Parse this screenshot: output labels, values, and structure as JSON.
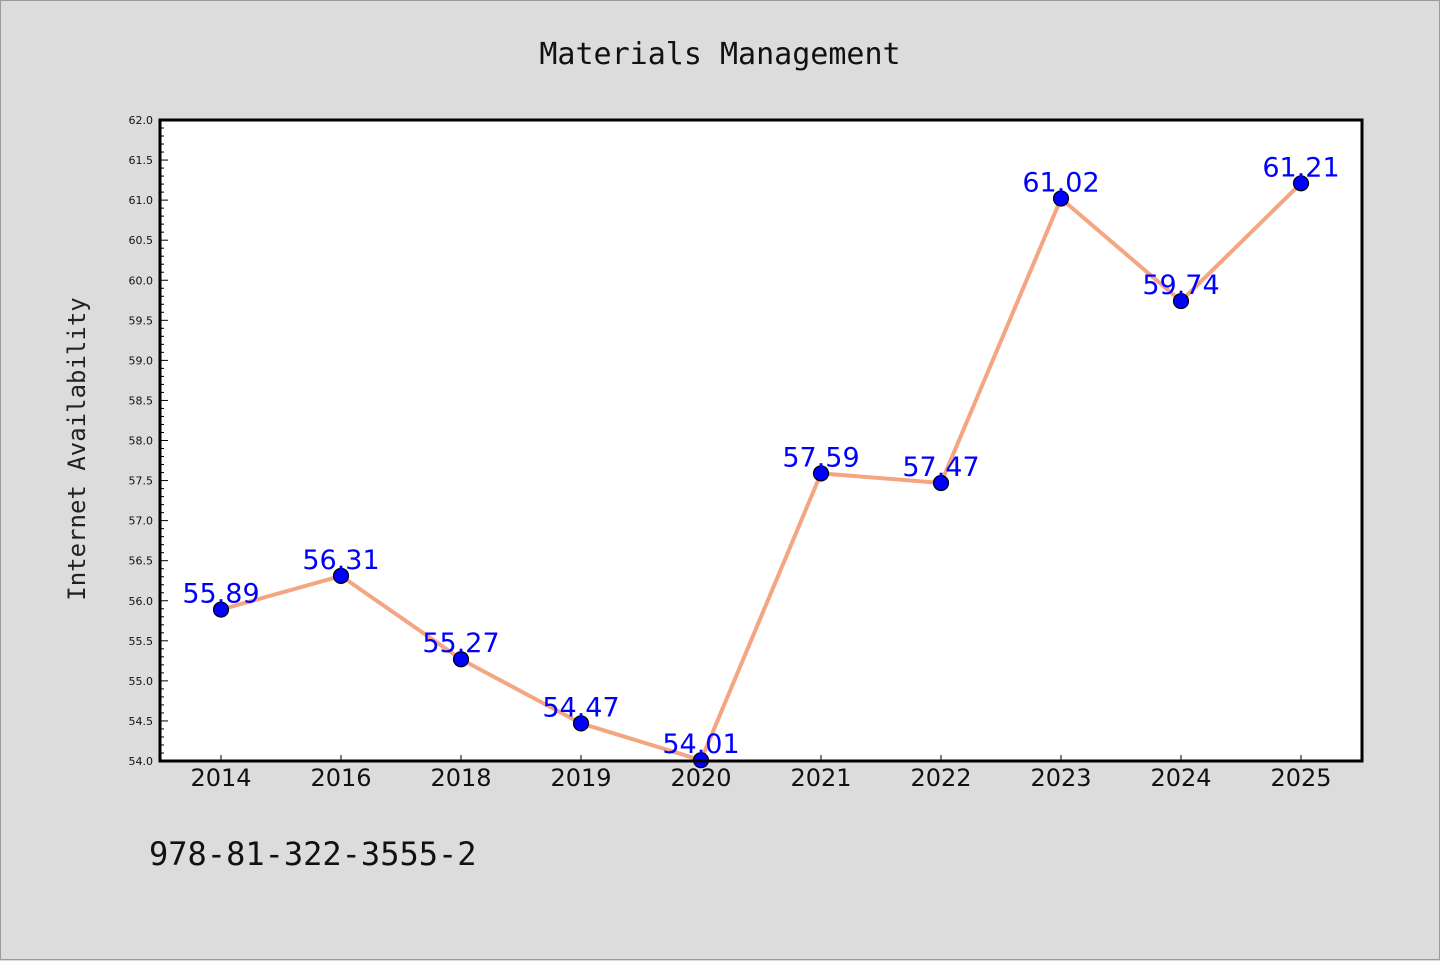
{
  "chart_data": {
    "type": "line",
    "title": "Materials Management",
    "xlabel": "",
    "ylabel": "Internet Availability",
    "categories": [
      "2014",
      "2016",
      "2018",
      "2019",
      "2020",
      "2021",
      "2022",
      "2023",
      "2024",
      "2025"
    ],
    "series": [
      {
        "values": [
          55.89,
          56.31,
          55.27,
          54.47,
          54.01,
          57.59,
          57.47,
          61.02,
          59.74,
          61.21
        ],
        "data_labels": [
          "55.89",
          "56.31",
          "55.27",
          "54.47",
          "54.01",
          "57.59",
          "57.47",
          "61.02",
          "59.74",
          "61.21"
        ],
        "line_color": "#f4a582",
        "marker_color": "#0000ff"
      }
    ],
    "ylim": [
      54.0,
      62.0
    ],
    "yticks": [
      "54.0",
      "54.5",
      "55.0",
      "55.5",
      "56.0",
      "56.5",
      "57.0",
      "57.5",
      "58.0",
      "58.5",
      "59.0",
      "59.5",
      "60.0",
      "60.5",
      "61.0",
      "61.5",
      "62.0"
    ],
    "grid": false,
    "legend": "none"
  },
  "footer": {
    "text": "978-81-322-3555-2"
  },
  "colors": {
    "background": "#dcdcdc",
    "plot_background": "#ffffff",
    "axis": "#000000",
    "line": "#f4a582",
    "marker": "#0000ff",
    "data_label": "#0000ff"
  }
}
